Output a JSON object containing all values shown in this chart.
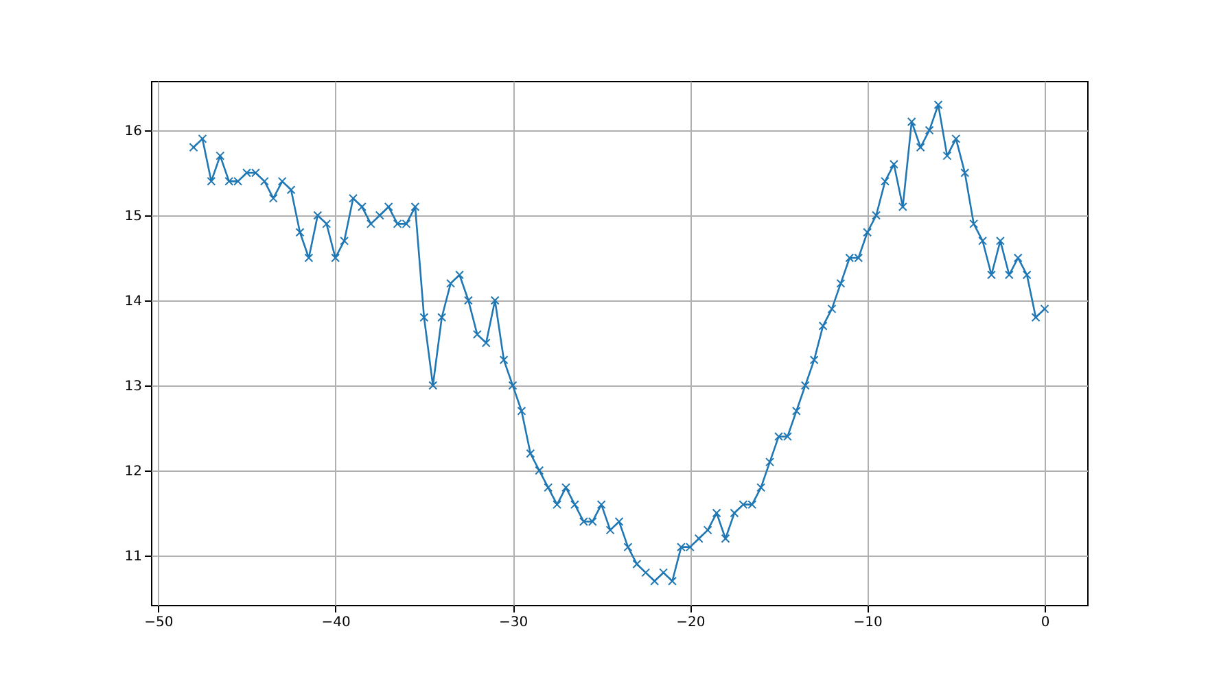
{
  "chart_data": {
    "type": "line",
    "x": [
      -48,
      -47.5,
      -47,
      -46.5,
      -46,
      -45.5,
      -45,
      -44.5,
      -44,
      -43.5,
      -43,
      -42.5,
      -42,
      -41.5,
      -41,
      -40.5,
      -40,
      -39.5,
      -39,
      -38.5,
      -38,
      -37.5,
      -37,
      -36.5,
      -36,
      -35.5,
      -35,
      -34.5,
      -34,
      -33.5,
      -33,
      -32.5,
      -32,
      -31.5,
      -31,
      -30.5,
      -30,
      -29.5,
      -29,
      -28.5,
      -28,
      -27.5,
      -27,
      -26.5,
      -26,
      -25.5,
      -25,
      -24.5,
      -24,
      -23.5,
      -23,
      -22.5,
      -22,
      -21.5,
      -21,
      -20.5,
      -20,
      -19.5,
      -19,
      -18.5,
      -18,
      -17.5,
      -17,
      -16.5,
      -16,
      -15.5,
      -15,
      -14.5,
      -14,
      -13.5,
      -13,
      -12.5,
      -12,
      -11.5,
      -11,
      -10.5,
      -10,
      -9.5,
      -9,
      -8.5,
      -8,
      -7.5,
      -7,
      -6.5,
      -6,
      -5.5,
      -5,
      -4.5,
      -4,
      -3.5,
      -3,
      -2.5,
      -2,
      -1.5,
      -1,
      -0.5,
      0
    ],
    "series": [
      {
        "color": "#1f77b4",
        "values": [
          15.8,
          15.9,
          15.4,
          15.7,
          15.4,
          15.4,
          15.5,
          15.5,
          15.4,
          15.2,
          15.4,
          15.3,
          14.8,
          14.5,
          15.0,
          14.9,
          14.5,
          14.7,
          15.2,
          15.1,
          14.9,
          15.0,
          15.1,
          14.9,
          14.9,
          15.1,
          13.8,
          13.0,
          13.8,
          14.2,
          14.3,
          14.0,
          13.6,
          13.5,
          14.0,
          13.3,
          13.0,
          12.7,
          12.2,
          12.0,
          11.8,
          11.6,
          11.8,
          11.6,
          11.4,
          11.4,
          11.6,
          11.3,
          11.4,
          11.1,
          10.9,
          10.8,
          10.7,
          10.8,
          10.7,
          11.1,
          11.1,
          11.2,
          11.3,
          11.5,
          11.2,
          11.5,
          11.6,
          11.6,
          11.8,
          12.1,
          12.4,
          12.4,
          12.7,
          13.0,
          13.3,
          13.7,
          13.9,
          14.2,
          14.5,
          14.5,
          14.8,
          15.0,
          15.4,
          15.6,
          15.1,
          16.1,
          15.8,
          16.0,
          16.3,
          15.7,
          15.9,
          15.5,
          14.9,
          14.7,
          14.3,
          14.7,
          14.3,
          14.5,
          14.3,
          13.8,
          13.9
        ]
      }
    ],
    "xlim": [
      -50.4,
      2.4
    ],
    "xticks": [
      -50,
      -40,
      -30,
      -20,
      -10,
      0
    ],
    "ylim": [
      10.42,
      16.58
    ],
    "yticks": [
      11,
      12,
      13,
      14,
      15,
      16
    ],
    "grid": true,
    "marker": "cross",
    "line_style": "solid"
  }
}
